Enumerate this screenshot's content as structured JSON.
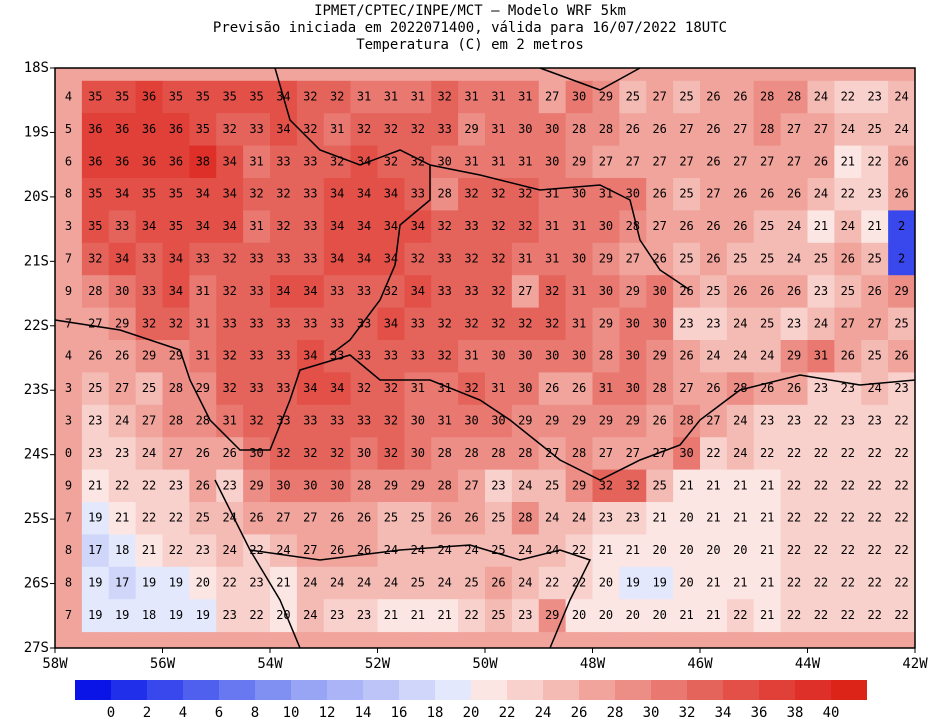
{
  "title_lines": [
    "IPMET/CPTEC/INPE/MCT – Modelo WRF 5km",
    "Previsão iniciada em 2022071400, válida para 16/07/2022 18UTC",
    "Temperatura (C) em 2 metros"
  ],
  "lat_ticks": [
    {
      "value": -18,
      "label": "18S"
    },
    {
      "value": -19,
      "label": "19S"
    },
    {
      "value": -20,
      "label": "20S"
    },
    {
      "value": -21,
      "label": "21S"
    },
    {
      "value": -22,
      "label": "22S"
    },
    {
      "value": -23,
      "label": "23S"
    },
    {
      "value": -24,
      "label": "24S"
    },
    {
      "value": -25,
      "label": "25S"
    },
    {
      "value": -26,
      "label": "26S"
    },
    {
      "value": -27,
      "label": "27S"
    }
  ],
  "lon_ticks": [
    {
      "value": -58,
      "label": "58W"
    },
    {
      "value": -56,
      "label": "56W"
    },
    {
      "value": -54,
      "label": "54W"
    },
    {
      "value": -52,
      "label": "52W"
    },
    {
      "value": -50,
      "label": "50W"
    },
    {
      "value": -48,
      "label": "48W"
    },
    {
      "value": -46,
      "label": "46W"
    },
    {
      "value": -44,
      "label": "44W"
    },
    {
      "value": -42,
      "label": "42W"
    }
  ],
  "colorbar": {
    "levels": [
      0,
      2,
      4,
      6,
      8,
      10,
      12,
      14,
      16,
      18,
      20,
      22,
      24,
      26,
      28,
      30,
      32,
      34,
      36,
      38,
      40
    ],
    "colors": [
      "#0a14e6",
      "#2030ea",
      "#3848ec",
      "#5060ee",
      "#6878f0",
      "#8090f2",
      "#98a4f4",
      "#aab4f6",
      "#bcc4f8",
      "#d0d6fa",
      "#e4e8fc",
      "#fce6e4",
      "#f8d0cc",
      "#f4bab4",
      "#f0a49c",
      "#ec8e86",
      "#e87870",
      "#e4645c",
      "#e25048",
      "#e04038",
      "#de3028",
      "#dc2418"
    ]
  },
  "grid_values": [
    [
      4,
      35,
      35,
      36,
      35,
      35,
      35,
      35,
      34,
      32,
      32,
      31,
      31,
      31,
      32,
      31,
      31,
      31,
      27,
      30,
      29,
      25,
      27,
      25,
      26,
      26,
      28,
      28,
      24,
      22,
      23,
      24
    ],
    [
      5,
      36,
      36,
      36,
      36,
      35,
      32,
      33,
      34,
      32,
      31,
      32,
      32,
      32,
      33,
      29,
      31,
      30,
      30,
      28,
      28,
      26,
      26,
      27,
      26,
      27,
      28,
      27,
      27,
      24,
      25,
      24
    ],
    [
      6,
      36,
      36,
      36,
      36,
      38,
      34,
      31,
      33,
      33,
      32,
      34,
      32,
      32,
      30,
      31,
      31,
      31,
      30,
      29,
      27,
      27,
      27,
      27,
      26,
      27,
      27,
      27,
      26,
      21,
      22,
      26
    ],
    [
      8,
      35,
      34,
      35,
      35,
      34,
      34,
      32,
      32,
      33,
      34,
      34,
      34,
      33,
      28,
      32,
      32,
      32,
      31,
      30,
      31,
      30,
      26,
      25,
      27,
      26,
      26,
      26,
      24,
      22,
      23,
      26
    ],
    [
      3,
      35,
      33,
      34,
      35,
      34,
      34,
      31,
      32,
      33,
      34,
      34,
      34,
      34,
      32,
      33,
      32,
      32,
      31,
      31,
      30,
      28,
      27,
      26,
      26,
      26,
      25,
      24,
      21,
      24,
      21,
      2
    ],
    [
      7,
      32,
      34,
      33,
      34,
      33,
      32,
      33,
      33,
      33,
      34,
      34,
      34,
      32,
      33,
      32,
      32,
      31,
      31,
      30,
      29,
      27,
      26,
      25,
      26,
      25,
      25,
      24,
      25,
      26,
      25,
      2
    ],
    [
      9,
      28,
      30,
      33,
      34,
      31,
      32,
      33,
      34,
      34,
      33,
      33,
      32,
      34,
      33,
      33,
      32,
      27,
      32,
      31,
      30,
      29,
      30,
      26,
      25,
      26,
      26,
      26,
      23,
      25,
      26,
      29
    ],
    [
      7,
      27,
      29,
      32,
      32,
      31,
      33,
      33,
      33,
      33,
      33,
      33,
      34,
      33,
      32,
      32,
      32,
      32,
      32,
      31,
      29,
      30,
      30,
      23,
      23,
      24,
      25,
      23,
      24,
      27,
      27,
      25
    ],
    [
      4,
      26,
      26,
      29,
      29,
      31,
      32,
      33,
      33,
      34,
      33,
      33,
      33,
      33,
      32,
      31,
      30,
      30,
      30,
      30,
      28,
      30,
      29,
      26,
      24,
      24,
      24,
      29,
      31,
      26,
      25,
      26
    ],
    [
      3,
      25,
      27,
      25,
      28,
      29,
      32,
      33,
      33,
      34,
      34,
      32,
      32,
      31,
      31,
      32,
      31,
      30,
      26,
      26,
      31,
      30,
      28,
      27,
      26,
      28,
      26,
      26,
      23,
      23,
      24,
      23
    ],
    [
      3,
      23,
      24,
      27,
      28,
      28,
      31,
      32,
      33,
      33,
      33,
      33,
      32,
      30,
      31,
      30,
      30,
      29,
      29,
      29,
      29,
      29,
      26,
      28,
      27,
      24,
      23,
      23,
      22,
      23,
      23,
      22
    ],
    [
      0,
      23,
      23,
      24,
      27,
      26,
      26,
      30,
      32,
      32,
      32,
      30,
      32,
      30,
      28,
      28,
      28,
      28,
      27,
      28,
      27,
      27,
      27,
      30,
      22,
      24,
      22,
      22,
      22,
      22,
      22,
      22
    ],
    [
      9,
      21,
      22,
      22,
      23,
      26,
      23,
      29,
      30,
      30,
      30,
      28,
      29,
      29,
      28,
      27,
      23,
      24,
      25,
      29,
      32,
      32,
      25,
      21,
      21,
      21,
      21,
      22,
      22,
      22,
      22,
      22
    ],
    [
      7,
      19,
      21,
      22,
      22,
      25,
      24,
      26,
      27,
      27,
      26,
      26,
      25,
      25,
      26,
      26,
      25,
      28,
      24,
      24,
      23,
      23,
      21,
      20,
      21,
      21,
      21,
      22,
      22,
      22,
      22,
      22
    ],
    [
      8,
      17,
      18,
      21,
      22,
      23,
      24,
      22,
      24,
      27,
      26,
      26,
      24,
      24,
      24,
      24,
      25,
      24,
      24,
      22,
      21,
      21,
      20,
      20,
      20,
      20,
      21,
      22,
      22,
      22,
      22,
      22
    ],
    [
      8,
      19,
      17,
      19,
      19,
      20,
      22,
      23,
      21,
      24,
      24,
      24,
      24,
      25,
      24,
      25,
      26,
      24,
      22,
      22,
      20,
      19,
      19,
      20,
      21,
      21,
      21,
      22,
      22,
      22,
      22,
      22
    ],
    [
      7,
      19,
      19,
      18,
      19,
      19,
      23,
      22,
      20,
      24,
      23,
      23,
      21,
      21,
      21,
      22,
      25,
      23,
      29,
      20,
      20,
      20,
      20,
      21,
      21,
      22,
      21,
      22,
      22,
      22,
      22,
      22
    ]
  ]
}
